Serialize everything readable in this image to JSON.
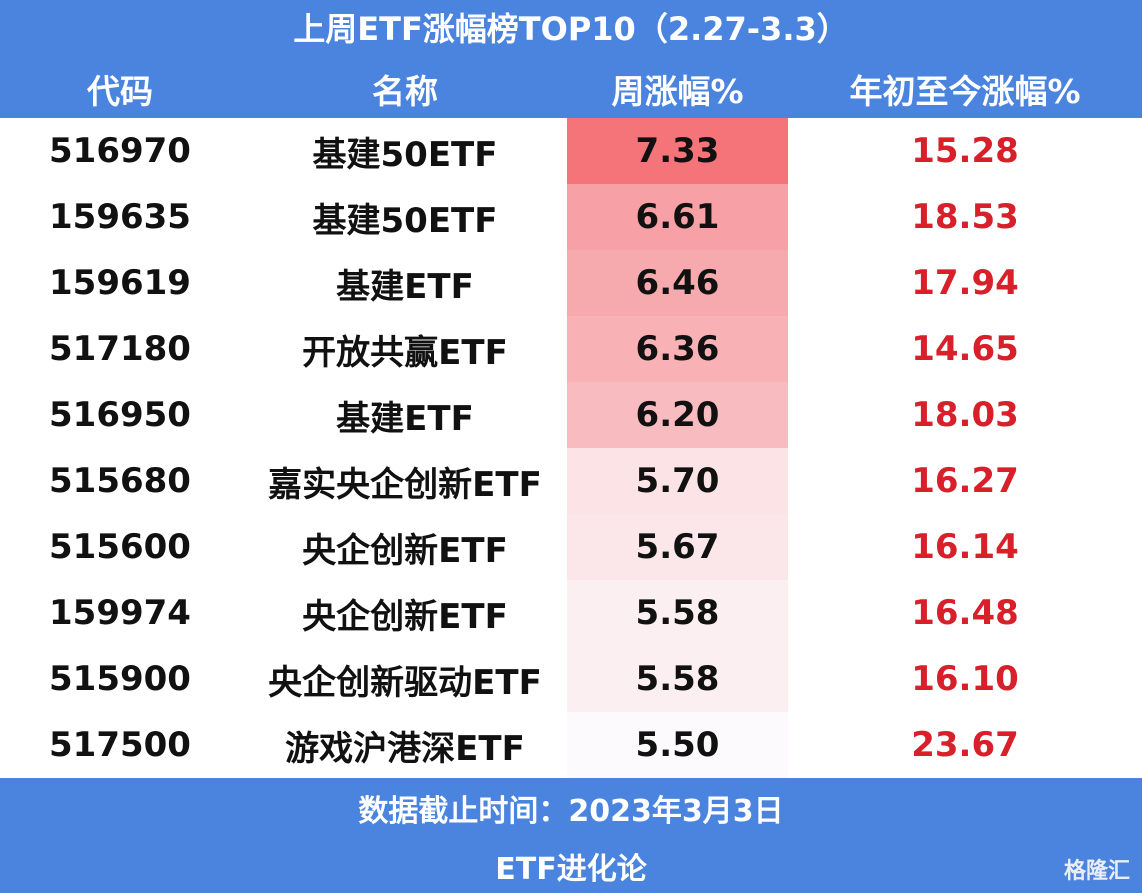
{
  "header": {
    "title": "上周ETF涨幅榜TOP10（2.27-3.3）"
  },
  "table": {
    "columns": [
      "代码",
      "名称",
      "周涨幅%",
      "年初至今涨幅%"
    ],
    "rows": [
      [
        "516970",
        "基建50ETF",
        "7.33",
        "15.28"
      ],
      [
        "159635",
        "基建50ETF",
        "6.61",
        "18.53"
      ],
      [
        "159619",
        "基建ETF",
        "6.46",
        "17.94"
      ],
      [
        "517180",
        "开放共赢ETF",
        "6.36",
        "14.65"
      ],
      [
        "516950",
        "基建ETF",
        "6.20",
        "18.03"
      ],
      [
        "515680",
        "嘉实央企创新ETF",
        "5.70",
        "16.27"
      ],
      [
        "515600",
        "央企创新ETF",
        "5.67",
        "16.14"
      ],
      [
        "159974",
        "央企创新ETF",
        "5.58",
        "16.48"
      ],
      [
        "515900",
        "央企创新驱动ETF",
        "5.58",
        "16.10"
      ],
      [
        "517500",
        "游戏沪港深ETF",
        "5.50",
        "23.67"
      ]
    ]
  },
  "footer": {
    "note": "数据截止时间：2023年3月3日",
    "source": "ETF进化论",
    "watermark": "格隆汇"
  }
}
